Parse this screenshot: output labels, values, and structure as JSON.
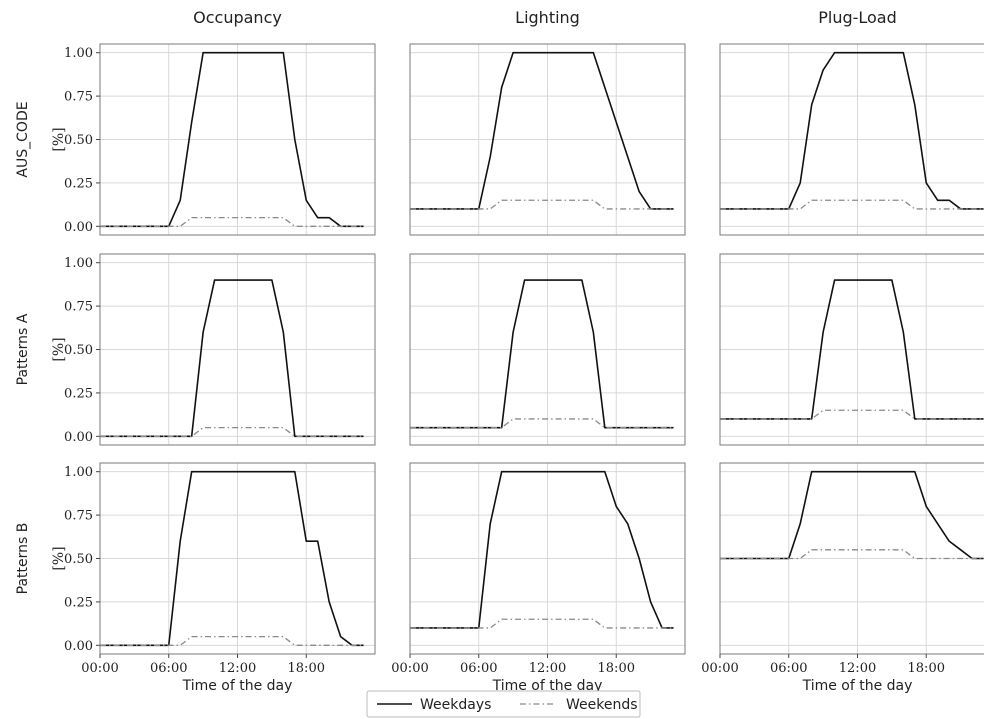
{
  "chart_data": {
    "type": "line",
    "column_titles": [
      "Occupancy",
      "Lighting",
      "Plug-Load"
    ],
    "row_labels": [
      "AUS_CODE",
      "Patterns A",
      "Patterns B"
    ],
    "ylabel": "[%]",
    "xlabel": "Time of the day",
    "x_ticks": [
      "00:00",
      "06:00",
      "12:00",
      "18:00"
    ],
    "y_ticks": [
      "0.00",
      "0.25",
      "0.50",
      "0.75",
      "1.00"
    ],
    "xlim": [
      0,
      24
    ],
    "ylim": [
      -0.05,
      1.05
    ],
    "grid": true,
    "legend": {
      "placement": "bottom-center",
      "entries": [
        "Weekdays",
        "Weekends"
      ]
    },
    "x_hours": [
      0,
      1,
      2,
      3,
      4,
      5,
      6,
      7,
      8,
      9,
      10,
      11,
      12,
      13,
      14,
      15,
      16,
      17,
      18,
      19,
      20,
      21,
      22,
      23
    ],
    "panels": [
      {
        "row": 0,
        "col": 0,
        "series": [
          {
            "name": "Weekdays",
            "values": [
              0,
              0,
              0,
              0,
              0,
              0,
              0,
              0.15,
              0.6,
              1,
              1,
              1,
              1,
              1,
              1,
              1,
              1,
              0.5,
              0.15,
              0.05,
              0.05,
              0,
              0,
              0
            ]
          },
          {
            "name": "Weekends",
            "values": [
              0,
              0,
              0,
              0,
              0,
              0,
              0,
              0,
              0.05,
              0.05,
              0.05,
              0.05,
              0.05,
              0.05,
              0.05,
              0.05,
              0.05,
              0,
              0,
              0,
              0,
              0,
              0,
              0
            ]
          }
        ]
      },
      {
        "row": 0,
        "col": 1,
        "series": [
          {
            "name": "Weekdays",
            "values": [
              0.1,
              0.1,
              0.1,
              0.1,
              0.1,
              0.1,
              0.1,
              0.4,
              0.8,
              1,
              1,
              1,
              1,
              1,
              1,
              1,
              1,
              0.8,
              0.6,
              0.4,
              0.2,
              0.1,
              0.1,
              0.1
            ]
          },
          {
            "name": "Weekends",
            "values": [
              0.1,
              0.1,
              0.1,
              0.1,
              0.1,
              0.1,
              0.1,
              0.1,
              0.15,
              0.15,
              0.15,
              0.15,
              0.15,
              0.15,
              0.15,
              0.15,
              0.15,
              0.1,
              0.1,
              0.1,
              0.1,
              0.1,
              0.1,
              0.1
            ]
          }
        ]
      },
      {
        "row": 0,
        "col": 2,
        "series": [
          {
            "name": "Weekdays",
            "values": [
              0.1,
              0.1,
              0.1,
              0.1,
              0.1,
              0.1,
              0.1,
              0.25,
              0.7,
              0.9,
              1,
              1,
              1,
              1,
              1,
              1,
              1,
              0.7,
              0.25,
              0.15,
              0.15,
              0.1,
              0.1,
              0.1
            ]
          },
          {
            "name": "Weekends",
            "values": [
              0.1,
              0.1,
              0.1,
              0.1,
              0.1,
              0.1,
              0.1,
              0.1,
              0.15,
              0.15,
              0.15,
              0.15,
              0.15,
              0.15,
              0.15,
              0.15,
              0.15,
              0.1,
              0.1,
              0.1,
              0.1,
              0.1,
              0.1,
              0.1
            ]
          }
        ]
      },
      {
        "row": 1,
        "col": 0,
        "series": [
          {
            "name": "Weekdays",
            "values": [
              0,
              0,
              0,
              0,
              0,
              0,
              0,
              0,
              0,
              0.6,
              0.9,
              0.9,
              0.9,
              0.9,
              0.9,
              0.9,
              0.6,
              0,
              0,
              0,
              0,
              0,
              0,
              0
            ]
          },
          {
            "name": "Weekends",
            "values": [
              0,
              0,
              0,
              0,
              0,
              0,
              0,
              0,
              0,
              0.05,
              0.05,
              0.05,
              0.05,
              0.05,
              0.05,
              0.05,
              0.05,
              0,
              0,
              0,
              0,
              0,
              0,
              0
            ]
          }
        ]
      },
      {
        "row": 1,
        "col": 1,
        "series": [
          {
            "name": "Weekdays",
            "values": [
              0.05,
              0.05,
              0.05,
              0.05,
              0.05,
              0.05,
              0.05,
              0.05,
              0.05,
              0.6,
              0.9,
              0.9,
              0.9,
              0.9,
              0.9,
              0.9,
              0.6,
              0.05,
              0.05,
              0.05,
              0.05,
              0.05,
              0.05,
              0.05
            ]
          },
          {
            "name": "Weekends",
            "values": [
              0.05,
              0.05,
              0.05,
              0.05,
              0.05,
              0.05,
              0.05,
              0.05,
              0.05,
              0.1,
              0.1,
              0.1,
              0.1,
              0.1,
              0.1,
              0.1,
              0.1,
              0.05,
              0.05,
              0.05,
              0.05,
              0.05,
              0.05,
              0.05
            ]
          }
        ]
      },
      {
        "row": 1,
        "col": 2,
        "series": [
          {
            "name": "Weekdays",
            "values": [
              0.1,
              0.1,
              0.1,
              0.1,
              0.1,
              0.1,
              0.1,
              0.1,
              0.1,
              0.6,
              0.9,
              0.9,
              0.9,
              0.9,
              0.9,
              0.9,
              0.6,
              0.1,
              0.1,
              0.1,
              0.1,
              0.1,
              0.1,
              0.1
            ]
          },
          {
            "name": "Weekends",
            "values": [
              0.1,
              0.1,
              0.1,
              0.1,
              0.1,
              0.1,
              0.1,
              0.1,
              0.1,
              0.15,
              0.15,
              0.15,
              0.15,
              0.15,
              0.15,
              0.15,
              0.15,
              0.1,
              0.1,
              0.1,
              0.1,
              0.1,
              0.1,
              0.1
            ]
          }
        ]
      },
      {
        "row": 2,
        "col": 0,
        "series": [
          {
            "name": "Weekdays",
            "values": [
              0,
              0,
              0,
              0,
              0,
              0,
              0,
              0.6,
              1,
              1,
              1,
              1,
              1,
              1,
              1,
              1,
              1,
              1,
              0.6,
              0.6,
              0.25,
              0.05,
              0,
              0
            ]
          },
          {
            "name": "Weekends",
            "values": [
              0,
              0,
              0,
              0,
              0,
              0,
              0,
              0,
              0.05,
              0.05,
              0.05,
              0.05,
              0.05,
              0.05,
              0.05,
              0.05,
              0.05,
              0,
              0,
              0,
              0,
              0,
              0,
              0
            ]
          }
        ]
      },
      {
        "row": 2,
        "col": 1,
        "series": [
          {
            "name": "Weekdays",
            "values": [
              0.1,
              0.1,
              0.1,
              0.1,
              0.1,
              0.1,
              0.1,
              0.7,
              1,
              1,
              1,
              1,
              1,
              1,
              1,
              1,
              1,
              1,
              0.8,
              0.7,
              0.5,
              0.25,
              0.1,
              0.1
            ]
          },
          {
            "name": "Weekends",
            "values": [
              0.1,
              0.1,
              0.1,
              0.1,
              0.1,
              0.1,
              0.1,
              0.1,
              0.15,
              0.15,
              0.15,
              0.15,
              0.15,
              0.15,
              0.15,
              0.15,
              0.15,
              0.1,
              0.1,
              0.1,
              0.1,
              0.1,
              0.1,
              0.1
            ]
          }
        ]
      },
      {
        "row": 2,
        "col": 2,
        "series": [
          {
            "name": "Weekdays",
            "values": [
              0.5,
              0.5,
              0.5,
              0.5,
              0.5,
              0.5,
              0.5,
              0.7,
              1,
              1,
              1,
              1,
              1,
              1,
              1,
              1,
              1,
              1,
              0.8,
              0.7,
              0.6,
              0.55,
              0.5,
              0.5
            ]
          },
          {
            "name": "Weekends",
            "values": [
              0.5,
              0.5,
              0.5,
              0.5,
              0.5,
              0.5,
              0.5,
              0.5,
              0.55,
              0.55,
              0.55,
              0.55,
              0.55,
              0.55,
              0.55,
              0.55,
              0.55,
              0.5,
              0.5,
              0.5,
              0.5,
              0.5,
              0.5,
              0.5
            ]
          }
        ]
      }
    ],
    "colors": {
      "weekdays": "#111111",
      "weekends": "#8a8a8a",
      "grid": "#d9d9d9",
      "frame": "#7a7a7a"
    }
  }
}
